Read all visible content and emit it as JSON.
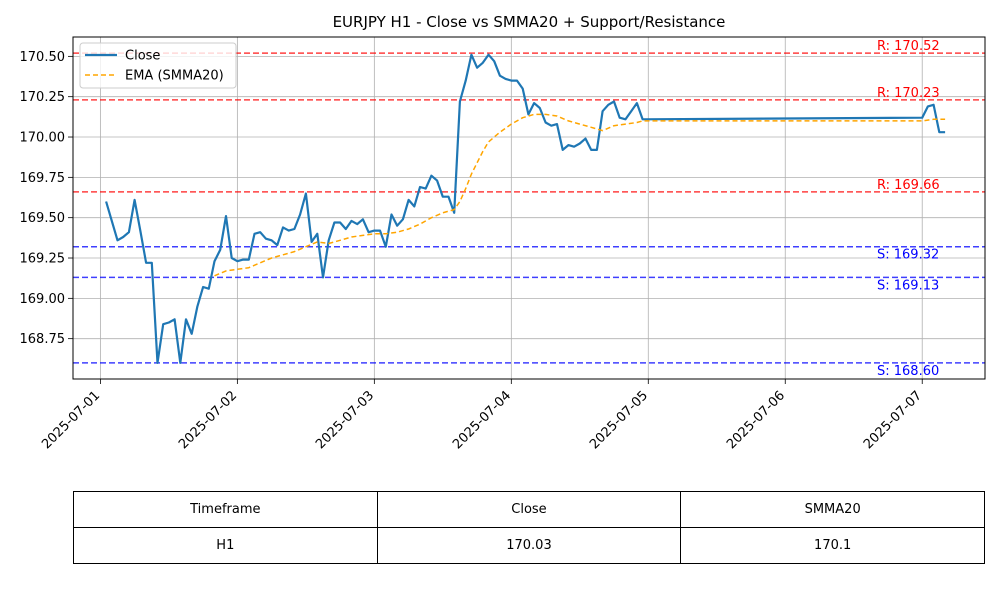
{
  "chart_data": {
    "type": "line",
    "title": "EURJPY H1 - Close vs SMMA20 + Support/Resistance",
    "xlabel": "",
    "ylabel": "",
    "x_range": [
      "2025-06-30T19:12",
      "2025-07-07T11:00"
    ],
    "ylim": [
      168.5,
      170.62
    ],
    "grid": true,
    "legend_position": "top-left",
    "x_ticks": [
      "2025-07-01",
      "2025-07-02",
      "2025-07-03",
      "2025-07-04",
      "2025-07-05",
      "2025-07-06",
      "2025-07-07"
    ],
    "y_ticks": [
      168.75,
      169.0,
      169.25,
      169.5,
      169.75,
      170.0,
      170.25,
      170.5
    ],
    "y_tick_labels": [
      "168.75",
      "169.00",
      "169.25",
      "169.50",
      "169.75",
      "170.00",
      "170.25",
      "170.50"
    ],
    "series": [
      {
        "name": "Close",
        "color": "#1f77b4",
        "style": "solid",
        "points": [
          [
            "2025-07-01T01:00",
            169.6
          ],
          [
            "2025-07-01T02:00",
            169.48
          ],
          [
            "2025-07-01T03:00",
            169.36
          ],
          [
            "2025-07-01T04:00",
            169.38
          ],
          [
            "2025-07-01T05:00",
            169.41
          ],
          [
            "2025-07-01T06:00",
            169.61
          ],
          [
            "2025-07-01T07:00",
            169.42
          ],
          [
            "2025-07-01T08:00",
            169.22
          ],
          [
            "2025-07-01T09:00",
            169.22
          ],
          [
            "2025-07-01T10:00",
            168.6
          ],
          [
            "2025-07-01T11:00",
            168.84
          ],
          [
            "2025-07-01T12:00",
            168.85
          ],
          [
            "2025-07-01T13:00",
            168.87
          ],
          [
            "2025-07-01T14:00",
            168.6
          ],
          [
            "2025-07-01T15:00",
            168.87
          ],
          [
            "2025-07-01T16:00",
            168.78
          ],
          [
            "2025-07-01T17:00",
            168.95
          ],
          [
            "2025-07-01T18:00",
            169.07
          ],
          [
            "2025-07-01T19:00",
            169.06
          ],
          [
            "2025-07-01T20:00",
            169.23
          ],
          [
            "2025-07-01T21:00",
            169.3
          ],
          [
            "2025-07-01T22:00",
            169.51
          ],
          [
            "2025-07-01T23:00",
            169.25
          ],
          [
            "2025-07-02T00:00",
            169.23
          ],
          [
            "2025-07-02T01:00",
            169.24
          ],
          [
            "2025-07-02T02:00",
            169.24
          ],
          [
            "2025-07-02T03:00",
            169.4
          ],
          [
            "2025-07-02T04:00",
            169.41
          ],
          [
            "2025-07-02T05:00",
            169.37
          ],
          [
            "2025-07-02T06:00",
            169.36
          ],
          [
            "2025-07-02T07:00",
            169.33
          ],
          [
            "2025-07-02T08:00",
            169.44
          ],
          [
            "2025-07-02T09:00",
            169.42
          ],
          [
            "2025-07-02T10:00",
            169.43
          ],
          [
            "2025-07-02T11:00",
            169.52
          ],
          [
            "2025-07-02T12:00",
            169.65
          ],
          [
            "2025-07-02T13:00",
            169.35
          ],
          [
            "2025-07-02T14:00",
            169.4
          ],
          [
            "2025-07-02T15:00",
            169.13
          ],
          [
            "2025-07-02T16:00",
            169.36
          ],
          [
            "2025-07-02T17:00",
            169.47
          ],
          [
            "2025-07-02T18:00",
            169.47
          ],
          [
            "2025-07-02T19:00",
            169.43
          ],
          [
            "2025-07-02T20:00",
            169.48
          ],
          [
            "2025-07-02T21:00",
            169.46
          ],
          [
            "2025-07-02T22:00",
            169.49
          ],
          [
            "2025-07-02T23:00",
            169.41
          ],
          [
            "2025-07-03T00:00",
            169.42
          ],
          [
            "2025-07-03T01:00",
            169.42
          ],
          [
            "2025-07-03T02:00",
            169.32
          ],
          [
            "2025-07-03T03:00",
            169.52
          ],
          [
            "2025-07-03T04:00",
            169.45
          ],
          [
            "2025-07-03T05:00",
            169.49
          ],
          [
            "2025-07-03T06:00",
            169.61
          ],
          [
            "2025-07-03T07:00",
            169.57
          ],
          [
            "2025-07-03T08:00",
            169.69
          ],
          [
            "2025-07-03T09:00",
            169.68
          ],
          [
            "2025-07-03T10:00",
            169.76
          ],
          [
            "2025-07-03T11:00",
            169.73
          ],
          [
            "2025-07-03T12:00",
            169.63
          ],
          [
            "2025-07-03T13:00",
            169.63
          ],
          [
            "2025-07-03T14:00",
            169.53
          ],
          [
            "2025-07-03T15:00",
            170.22
          ],
          [
            "2025-07-03T16:00",
            170.35
          ],
          [
            "2025-07-03T17:00",
            170.51
          ],
          [
            "2025-07-03T18:00",
            170.43
          ],
          [
            "2025-07-03T19:00",
            170.46
          ],
          [
            "2025-07-03T20:00",
            170.51
          ],
          [
            "2025-07-03T21:00",
            170.47
          ],
          [
            "2025-07-03T22:00",
            170.38
          ],
          [
            "2025-07-03T23:00",
            170.36
          ],
          [
            "2025-07-04T00:00",
            170.35
          ],
          [
            "2025-07-04T01:00",
            170.35
          ],
          [
            "2025-07-04T02:00",
            170.3
          ],
          [
            "2025-07-04T03:00",
            170.14
          ],
          [
            "2025-07-04T04:00",
            170.21
          ],
          [
            "2025-07-04T05:00",
            170.18
          ],
          [
            "2025-07-04T06:00",
            170.09
          ],
          [
            "2025-07-04T07:00",
            170.07
          ],
          [
            "2025-07-04T08:00",
            170.08
          ],
          [
            "2025-07-04T09:00",
            169.92
          ],
          [
            "2025-07-04T10:00",
            169.95
          ],
          [
            "2025-07-04T11:00",
            169.94
          ],
          [
            "2025-07-04T12:00",
            169.96
          ],
          [
            "2025-07-04T13:00",
            169.99
          ],
          [
            "2025-07-04T14:00",
            169.92
          ],
          [
            "2025-07-04T15:00",
            169.92
          ],
          [
            "2025-07-04T16:00",
            170.16
          ],
          [
            "2025-07-04T17:00",
            170.2
          ],
          [
            "2025-07-04T18:00",
            170.22
          ],
          [
            "2025-07-04T19:00",
            170.12
          ],
          [
            "2025-07-04T20:00",
            170.11
          ],
          [
            "2025-07-04T21:00",
            170.16
          ],
          [
            "2025-07-04T22:00",
            170.21
          ],
          [
            "2025-07-04T23:00",
            170.11
          ],
          [
            "2025-07-07T00:00",
            170.12
          ],
          [
            "2025-07-07T01:00",
            170.19
          ],
          [
            "2025-07-07T02:00",
            170.2
          ],
          [
            "2025-07-07T03:00",
            170.03
          ],
          [
            "2025-07-07T04:00",
            170.03
          ]
        ]
      },
      {
        "name": "EMA (SMMA20)",
        "color": "#ffa500",
        "style": "dashed",
        "points": [
          [
            "2025-07-01T20:00",
            169.14
          ],
          [
            "2025-07-01T22:00",
            169.17
          ],
          [
            "2025-07-02T00:00",
            169.18
          ],
          [
            "2025-07-02T02:00",
            169.19
          ],
          [
            "2025-07-02T04:00",
            169.22
          ],
          [
            "2025-07-02T06:00",
            169.25
          ],
          [
            "2025-07-02T08:00",
            169.27
          ],
          [
            "2025-07-02T10:00",
            169.29
          ],
          [
            "2025-07-02T12:00",
            169.32
          ],
          [
            "2025-07-02T14:00",
            169.35
          ],
          [
            "2025-07-02T16:00",
            169.34
          ],
          [
            "2025-07-02T18:00",
            169.36
          ],
          [
            "2025-07-02T20:00",
            169.38
          ],
          [
            "2025-07-02T22:00",
            169.39
          ],
          [
            "2025-07-03T00:00",
            169.4
          ],
          [
            "2025-07-03T02:00",
            169.4
          ],
          [
            "2025-07-03T04:00",
            169.41
          ],
          [
            "2025-07-03T06:00",
            169.43
          ],
          [
            "2025-07-03T08:00",
            169.46
          ],
          [
            "2025-07-03T10:00",
            169.5
          ],
          [
            "2025-07-03T12:00",
            169.53
          ],
          [
            "2025-07-03T14:00",
            169.55
          ],
          [
            "2025-07-03T15:00",
            169.6
          ],
          [
            "2025-07-03T16:00",
            169.68
          ],
          [
            "2025-07-03T17:00",
            169.77
          ],
          [
            "2025-07-03T18:00",
            169.84
          ],
          [
            "2025-07-03T19:00",
            169.91
          ],
          [
            "2025-07-03T20:00",
            169.97
          ],
          [
            "2025-07-03T22:00",
            170.03
          ],
          [
            "2025-07-04T00:00",
            170.08
          ],
          [
            "2025-07-04T02:00",
            170.12
          ],
          [
            "2025-07-04T04:00",
            170.14
          ],
          [
            "2025-07-04T06:00",
            170.14
          ],
          [
            "2025-07-04T08:00",
            170.13
          ],
          [
            "2025-07-04T10:00",
            170.1
          ],
          [
            "2025-07-04T12:00",
            170.08
          ],
          [
            "2025-07-04T14:00",
            170.06
          ],
          [
            "2025-07-04T16:00",
            170.04
          ],
          [
            "2025-07-04T18:00",
            170.07
          ],
          [
            "2025-07-04T20:00",
            170.08
          ],
          [
            "2025-07-04T22:00",
            170.09
          ],
          [
            "2025-07-04T23:00",
            170.1
          ],
          [
            "2025-07-07T00:00",
            170.1
          ],
          [
            "2025-07-07T02:00",
            170.11
          ],
          [
            "2025-07-07T04:00",
            170.11
          ]
        ]
      }
    ],
    "resistance": [
      {
        "label": "R: 170.52",
        "value": 170.52
      },
      {
        "label": "R: 170.23",
        "value": 170.23
      },
      {
        "label": "R: 169.66",
        "value": 169.66
      }
    ],
    "support": [
      {
        "label": "S: 169.32",
        "value": 169.32
      },
      {
        "label": "S: 169.13",
        "value": 169.13
      },
      {
        "label": "S: 168.60",
        "value": 168.6
      }
    ],
    "resistance_color": "#ff0000",
    "support_color": "#0000ff"
  },
  "table": {
    "headers": [
      "Timeframe",
      "Close",
      "SMMA20"
    ],
    "row": [
      "H1",
      "170.03",
      "170.1"
    ]
  }
}
